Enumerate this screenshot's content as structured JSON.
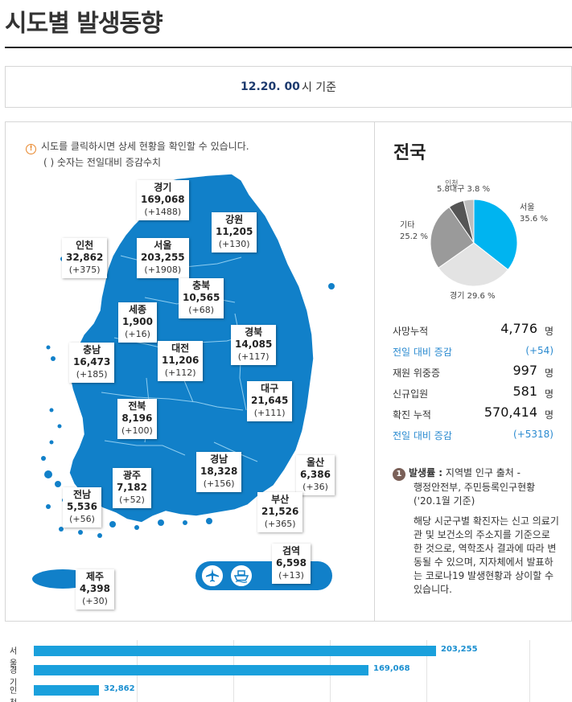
{
  "page": {
    "title": "시도별 발생동향",
    "date_bold": "12.20. 00",
    "date_suffix": "시 기준"
  },
  "notice": {
    "line1": "시도를 클릭하시면 상세 현황을 확인할 수 있습니다.",
    "line2": "( ) 숫자는 전일대비 증감수치"
  },
  "regions": [
    {
      "id": "gyeonggi",
      "name": "경기",
      "count": "169,068",
      "delta": "(+1488)"
    },
    {
      "id": "gangwon",
      "name": "강원",
      "count": "11,205",
      "delta": "(+130)"
    },
    {
      "id": "incheon",
      "name": "인천",
      "count": "32,862",
      "delta": "(+375)"
    },
    {
      "id": "seoul",
      "name": "서울",
      "count": "203,255",
      "delta": "(+1908)"
    },
    {
      "id": "chungbuk",
      "name": "충북",
      "count": "10,565",
      "delta": "(+68)"
    },
    {
      "id": "sejong",
      "name": "세종",
      "count": "1,900",
      "delta": "(+16)"
    },
    {
      "id": "chungnam",
      "name": "충남",
      "count": "16,473",
      "delta": "(+185)"
    },
    {
      "id": "daejeon",
      "name": "대전",
      "count": "11,206",
      "delta": "(+112)"
    },
    {
      "id": "gyeongbuk",
      "name": "경북",
      "count": "14,085",
      "delta": "(+117)"
    },
    {
      "id": "daegu",
      "name": "대구",
      "count": "21,645",
      "delta": "(+111)"
    },
    {
      "id": "jeonbuk",
      "name": "전북",
      "count": "8,196",
      "delta": "(+100)"
    },
    {
      "id": "gwangju",
      "name": "광주",
      "count": "7,182",
      "delta": "(+52)"
    },
    {
      "id": "gyeongnam",
      "name": "경남",
      "count": "18,328",
      "delta": "(+156)"
    },
    {
      "id": "ulsan",
      "name": "울산",
      "count": "6,386",
      "delta": "(+36)"
    },
    {
      "id": "jeonnam",
      "name": "전남",
      "count": "5,536",
      "delta": "(+56)"
    },
    {
      "id": "busan",
      "name": "부산",
      "count": "21,526",
      "delta": "(+365)"
    },
    {
      "id": "jeju",
      "name": "제주",
      "count": "4,398",
      "delta": "(+30)"
    },
    {
      "id": "quarantine",
      "name": "검역",
      "count": "6,598",
      "delta": "(+13)"
    }
  ],
  "transport_icons": [
    "airplane-icon",
    "ship-icon"
  ],
  "nation": {
    "title": "전국",
    "stats": [
      {
        "label": "사망누적",
        "value": "4,776",
        "unit": "명",
        "sub": false
      },
      {
        "label": "전일 대비 증감",
        "value": "(+54)",
        "unit": "",
        "sub": true
      },
      {
        "label": "재원 위중증",
        "value": "997",
        "unit": "명",
        "sub": false
      },
      {
        "label": "신규입원",
        "value": "581",
        "unit": "명",
        "sub": false
      },
      {
        "label": "확진 누적",
        "value": "570,414",
        "unit": "명",
        "sub": false
      },
      {
        "label": "전일 대비 증감",
        "value": "(+5318)",
        "unit": "",
        "sub": true
      }
    ]
  },
  "note": {
    "number": "1",
    "head": "발생률 :",
    "text1": " 지역별 인구 출처 -",
    "text2": "행정안전부, 주민등록인구현황",
    "text3": "('20.1월 기준)",
    "para": "해당 시군구별 확진자는 신고 의료기관 및 보건소의 주소지를 기준으로 한 것으로, 역학조사 결과에 따라 변동될 수 있으며, 지자체에서 발표하는 코로나19 발생현황과 상이할 수 있습니다."
  },
  "colors": {
    "map": "#1180c9",
    "pie_seoul": "#00b4f0",
    "pie_gyeonggi": "#e3e3e3",
    "pie_other": "#9a9a9a",
    "pie_incheon": "#555555",
    "pie_daegu": "#bdbdbd",
    "bar": "#1aa0dc"
  },
  "chart_data": [
    {
      "type": "pie",
      "labels": [
        "서울",
        "경기",
        "기타",
        "인천",
        "대구"
      ],
      "values": [
        35.6,
        29.6,
        25.2,
        5.8,
        3.8
      ],
      "display_labels": [
        "서울\n35.6 %",
        "경기 29.6 %",
        "기타\n25.2 %",
        "인천",
        "5.8대구 3.8 %"
      ]
    },
    {
      "type": "bar",
      "orientation": "horizontal",
      "categories": [
        "서울",
        "경기",
        "인천"
      ],
      "values": [
        203255,
        169068,
        32862
      ],
      "value_labels": [
        "203,255",
        "169,068",
        "32,862"
      ]
    }
  ]
}
